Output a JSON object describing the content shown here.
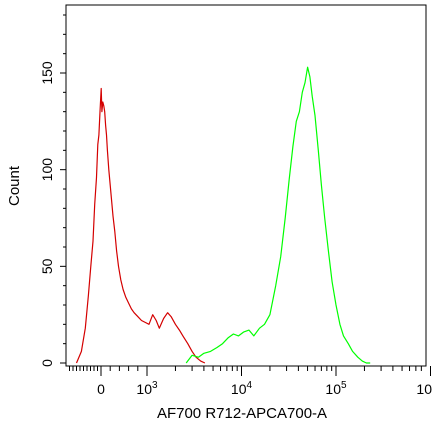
{
  "chart_data": {
    "type": "line",
    "title": "",
    "xlabel": "AF700 R712-APCA700-A",
    "ylabel": "Count",
    "x_scale": "biexponential (log above ~10^3)",
    "xlim": [
      -1000,
      1000000
    ],
    "ylim": [
      0,
      185
    ],
    "grid": false,
    "legend": "none",
    "x_ticks": [
      {
        "value": 0,
        "label": "0"
      },
      {
        "value": 1000,
        "label": "10",
        "exp": "3"
      },
      {
        "value": 10000,
        "label": "10",
        "exp": "4"
      },
      {
        "value": 100000,
        "label": "10",
        "exp": "5"
      },
      {
        "value": 1000000,
        "label": "10",
        "exp": ""
      }
    ],
    "y_ticks": [
      0,
      50,
      100,
      150
    ],
    "series": [
      {
        "color": "#d40000",
        "x": [
          -700,
          -560,
          -450,
          -360,
          -290,
          -230,
          -180,
          -130,
          -90,
          -60,
          -30,
          -10,
          5,
          20,
          40,
          60,
          80,
          100,
          120,
          140,
          170,
          200,
          230,
          260,
          300,
          340,
          380,
          430,
          480,
          540,
          600,
          660,
          720,
          800,
          880,
          960,
          1050,
          1150,
          1250,
          1350,
          1500,
          1650,
          1800,
          2000,
          2200,
          2400,
          2700,
          3000,
          3300,
          3700,
          4100
        ],
        "y": [
          0,
          6,
          18,
          35,
          50,
          63,
          82,
          96,
          113,
          118,
          130,
          137,
          142,
          130,
          135,
          133,
          130,
          123,
          118,
          110,
          100,
          92,
          84,
          76,
          68,
          58,
          50,
          43,
          38,
          34,
          31,
          28,
          26,
          24,
          22,
          21,
          20,
          25,
          22,
          18,
          23,
          26,
          24,
          20,
          17,
          14,
          10,
          6,
          3,
          1,
          0
        ]
      },
      {
        "color": "#00ff00",
        "x": [
          2600,
          3000,
          3500,
          4000,
          4700,
          5500,
          6300,
          7200,
          8200,
          9300,
          10500,
          12000,
          13500,
          15500,
          17500,
          20000,
          23000,
          26000,
          29000,
          32000,
          35000,
          38000,
          41000,
          44000,
          47000,
          50000,
          53000,
          56000,
          60000,
          65000,
          70000,
          76000,
          83000,
          91000,
          100000,
          110000,
          120000,
          135000,
          150000,
          170000,
          190000,
          210000,
          230000
        ],
        "y": [
          0,
          4,
          3,
          5,
          6,
          8,
          10,
          13,
          15,
          14,
          16,
          17,
          14,
          18,
          20,
          25,
          40,
          55,
          75,
          95,
          112,
          125,
          130,
          140,
          145,
          153,
          148,
          138,
          128,
          110,
          92,
          75,
          58,
          42,
          30,
          20,
          14,
          10,
          6,
          3,
          1,
          0,
          0
        ]
      }
    ]
  }
}
